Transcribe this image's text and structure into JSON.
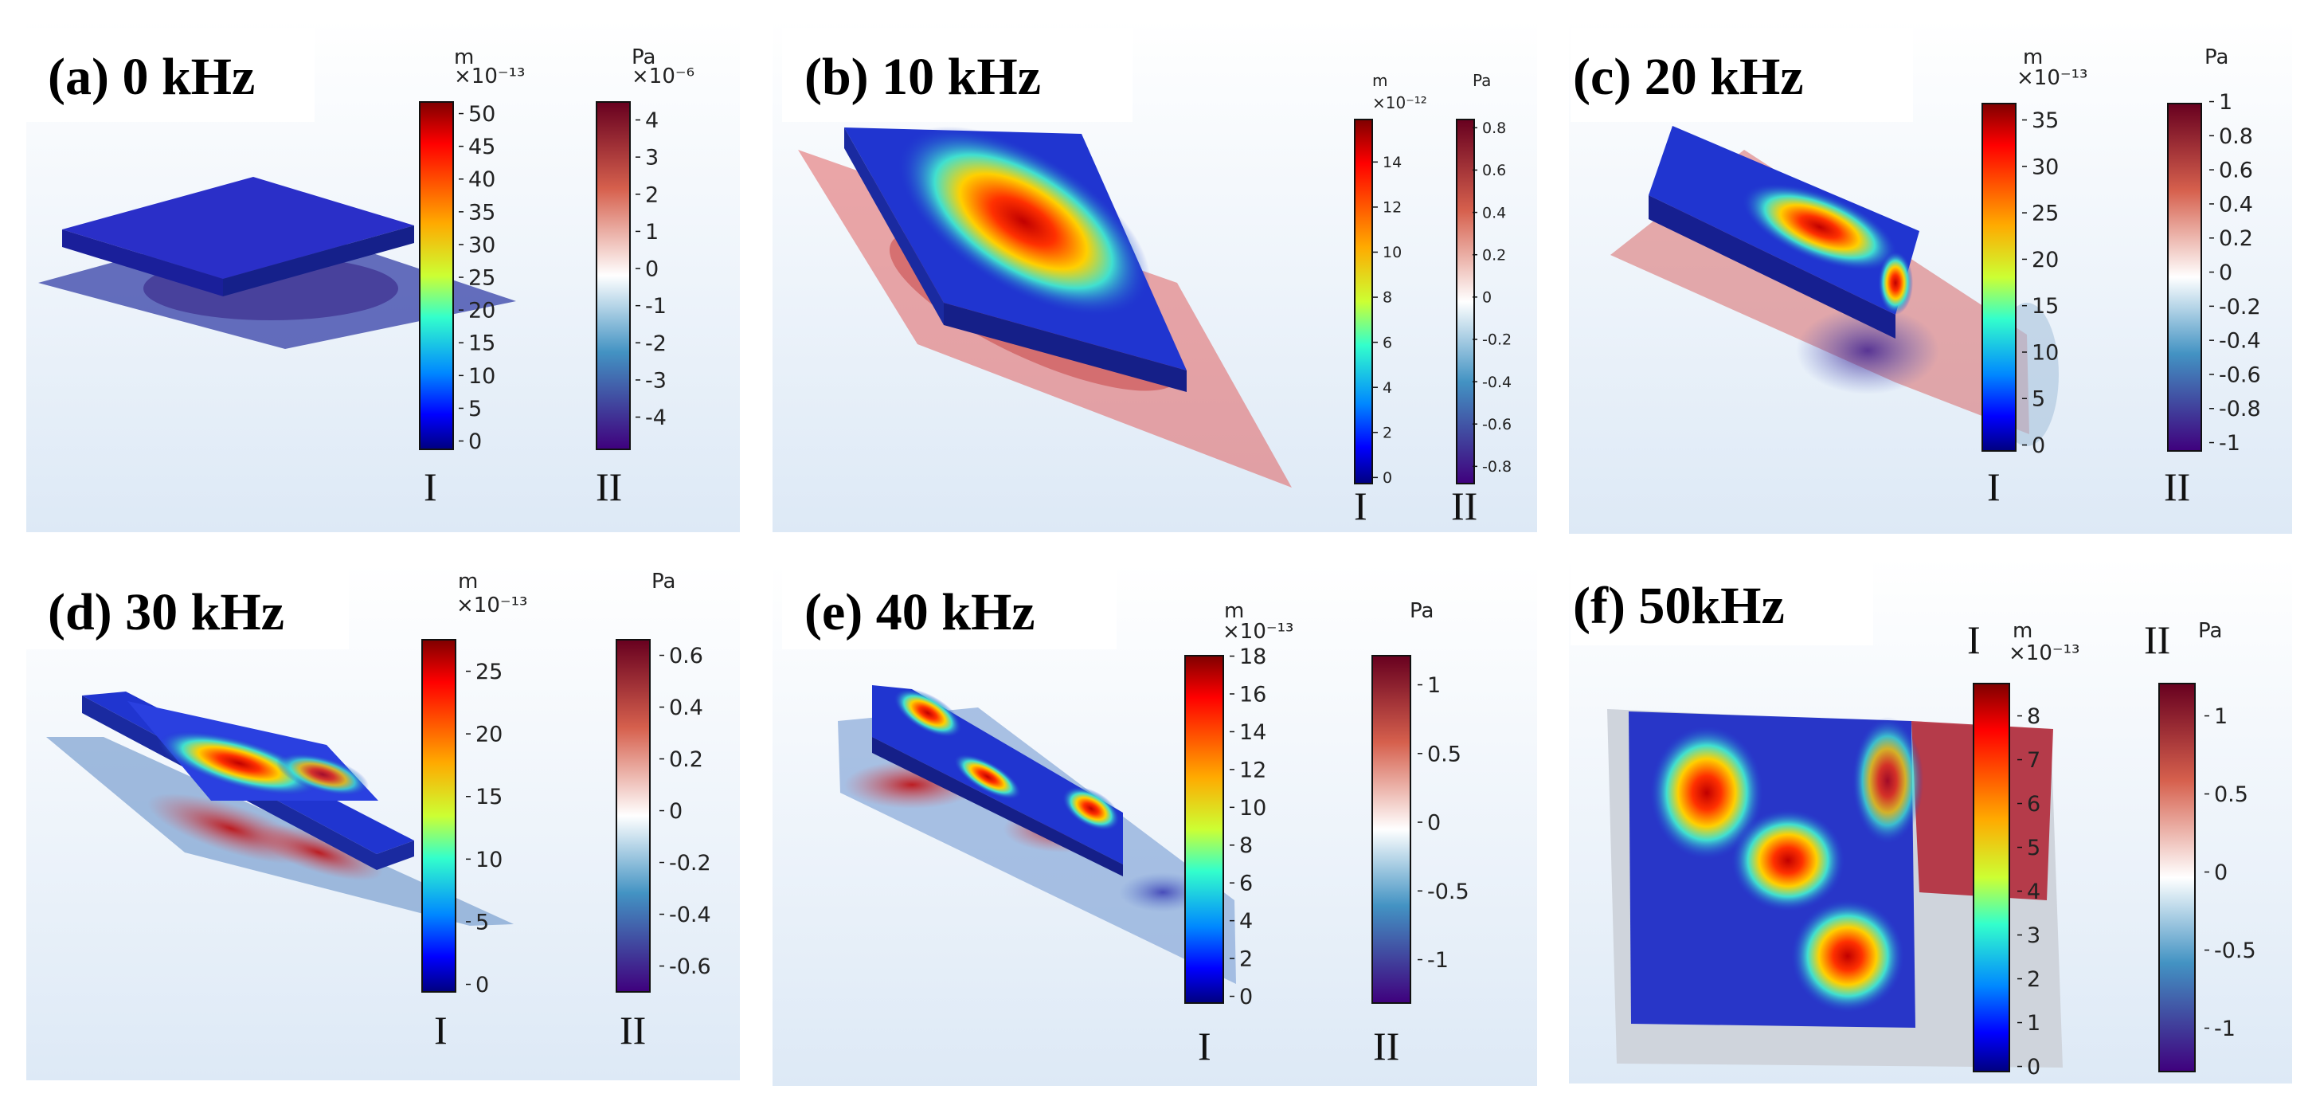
{
  "panels": [
    {
      "id": "a",
      "title": "(a) 0 kHz",
      "bar1": {
        "unit": "m",
        "scale": "×10⁻¹³",
        "ticks": [
          "50",
          "45",
          "40",
          "35",
          "30",
          "25",
          "20",
          "15",
          "10",
          "5",
          "0"
        ],
        "label": "I"
      },
      "bar2": {
        "unit": "Pa",
        "scale": "×10⁻⁶",
        "ticks": [
          "4",
          "3",
          "2",
          "1",
          "0",
          "-1",
          "-2",
          "-3",
          "-4"
        ],
        "label": "II"
      }
    },
    {
      "id": "b",
      "title": "(b) 10 kHz",
      "bar1": {
        "unit": "m",
        "scale": "×10⁻¹²",
        "ticks": [
          "14",
          "12",
          "10",
          "8",
          "6",
          "4",
          "2",
          "0"
        ],
        "label": "I"
      },
      "bar2": {
        "unit": "Pa",
        "scale": "",
        "ticks": [
          "0.8",
          "0.6",
          "0.4",
          "0.2",
          "0",
          "-0.2",
          "-0.4",
          "-0.6",
          "-0.8"
        ],
        "label": "II"
      }
    },
    {
      "id": "c",
      "title": "(c) 20 kHz",
      "bar1": {
        "unit": "m",
        "scale": "×10⁻¹³",
        "ticks": [
          "35",
          "30",
          "25",
          "20",
          "15",
          "10",
          "5",
          "0"
        ],
        "label": "I"
      },
      "bar2": {
        "unit": "Pa",
        "scale": "",
        "ticks": [
          "1",
          "0.8",
          "0.6",
          "0.4",
          "0.2",
          "0",
          "-0.2",
          "-0.4",
          "-0.6",
          "-0.8",
          "-1"
        ],
        "label": "II"
      }
    },
    {
      "id": "d",
      "title": "(d) 30 kHz",
      "bar1": {
        "unit": "m",
        "scale": "×10⁻¹³",
        "ticks": [
          "25",
          "20",
          "15",
          "10",
          "5",
          "0"
        ],
        "label": "I"
      },
      "bar2": {
        "unit": "Pa",
        "scale": "",
        "ticks": [
          "0.6",
          "0.4",
          "0.2",
          "0",
          "-0.2",
          "-0.4",
          "-0.6"
        ],
        "label": "II"
      }
    },
    {
      "id": "e",
      "title": "(e) 40 kHz",
      "bar1": {
        "unit": "m",
        "scale": "×10⁻¹³",
        "ticks": [
          "18",
          "16",
          "14",
          "12",
          "10",
          "8",
          "6",
          "4",
          "2",
          "0"
        ],
        "label": "I"
      },
      "bar2": {
        "unit": "Pa",
        "scale": "",
        "ticks": [
          "1",
          "0.5",
          "0",
          "-0.5",
          "-1"
        ],
        "label": "II"
      }
    },
    {
      "id": "f",
      "title": "(f) 50kHz",
      "bar1": {
        "unit": "m",
        "scale": "×10⁻¹³",
        "ticks": [
          "8",
          "7",
          "6",
          "5",
          "4",
          "3",
          "2",
          "1",
          "0"
        ],
        "label": "I"
      },
      "bar2": {
        "unit": "Pa",
        "scale": "",
        "ticks": [
          "1",
          "0.5",
          "0",
          "-0.5",
          "-1"
        ],
        "label": "II"
      }
    }
  ],
  "colors": {
    "jet": [
      "#7f0000",
      "#ff0000",
      "#ff7f00",
      "#ffff00",
      "#7fff7f",
      "#00ffff",
      "#007fff",
      "#0000ff",
      "#00007f"
    ],
    "wave": [
      "#67001f",
      "#d6604d",
      "#ffffff",
      "#4393c3",
      "#3f007d"
    ],
    "panel_bg": "#eef4fb"
  }
}
